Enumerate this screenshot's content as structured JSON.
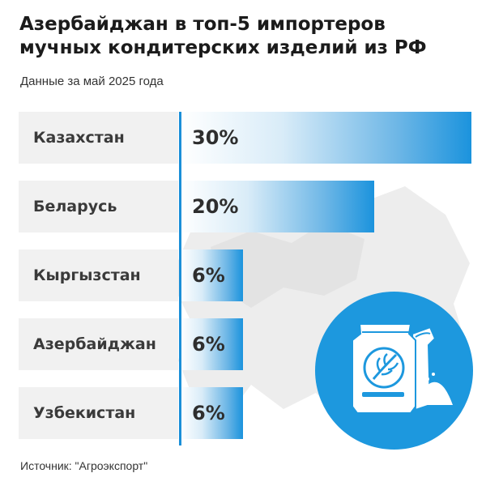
{
  "title_lines": [
    "Азербайджан в топ-5 импортеров",
    "мучных кондитерских изделий из РФ"
  ],
  "subtitle": "Данные за май 2025 года",
  "source": "Источник: \"Агроэкспорт\"",
  "colors": {
    "accent": "#1b93dd",
    "label_bg": "#f1f1f1",
    "circle": "#1d98de"
  },
  "icons": [
    "map-background",
    "flour-bag-icon"
  ],
  "chart_data": {
    "type": "bar",
    "orientation": "horizontal",
    "categories": [
      "Казахстан",
      "Беларусь",
      "Кыргызстан",
      "Азербайджан",
      "Узбекистан"
    ],
    "values": [
      30,
      20,
      6,
      6,
      6
    ],
    "value_labels": [
      "30%",
      "20%",
      "6%",
      "6%",
      "6%"
    ],
    "unit": "%",
    "xlim": [
      0,
      30
    ]
  }
}
